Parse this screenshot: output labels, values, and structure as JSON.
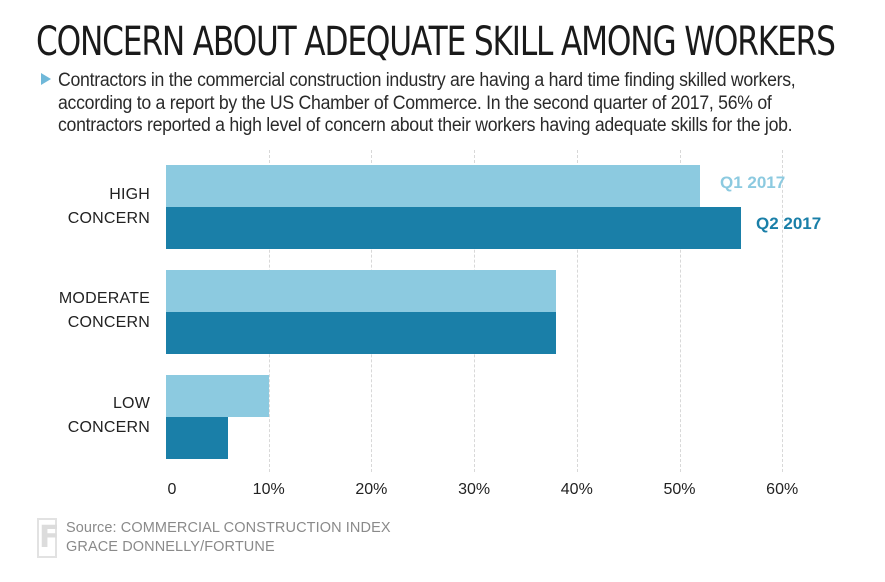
{
  "title": "CONCERN ABOUT ADEQUATE SKILL AMONG WORKERS",
  "subtitle": "Contractors in the commercial construction industry are having a hard time finding skilled workers, according to a report by the US Chamber of Commerce. In the second quarter of 2017, 56% of contractors reported a high level of concern about their workers having adequate skills for the job.",
  "bullet_icon": "triangle-right-icon",
  "colors": {
    "q1": "#8ccae0",
    "q2": "#1a7fa8",
    "bullet": "#6fb8d9"
  },
  "categories": [
    {
      "line1": "HIGH",
      "line2": "CONCERN"
    },
    {
      "line1": "MODERATE",
      "line2": "CONCERN"
    },
    {
      "line1": "LOW",
      "line2": "CONCERN"
    }
  ],
  "legend": {
    "q1": "Q1 2017",
    "q2": "Q2 2017"
  },
  "ticks": [
    "0",
    "10%",
    "20%",
    "30%",
    "40%",
    "50%",
    "60%"
  ],
  "source": {
    "line1": "Source: COMMERCIAL CONSTRUCTION INDEX",
    "line2": "GRACE DONNELLY/FORTUNE",
    "logo_letter": "F"
  },
  "chart_data": {
    "type": "bar",
    "orientation": "horizontal",
    "title": "CONCERN ABOUT ADEQUATE SKILL AMONG WORKERS",
    "categories": [
      "High concern",
      "Moderate concern",
      "Low concern"
    ],
    "series": [
      {
        "name": "Q1 2017",
        "values": [
          52,
          38,
          10
        ]
      },
      {
        "name": "Q2 2017",
        "values": [
          56,
          38,
          6
        ]
      }
    ],
    "xlabel": "",
    "ylabel": "",
    "xlim": [
      0,
      60
    ],
    "x_ticks": [
      "0",
      "10%",
      "20%",
      "30%",
      "40%",
      "50%",
      "60%"
    ],
    "grid": true,
    "legend_position": "inline-right-of-top-bars",
    "source": "COMMERCIAL CONSTRUCTION INDEX",
    "credit": "GRACE DONNELLY/FORTUNE"
  }
}
